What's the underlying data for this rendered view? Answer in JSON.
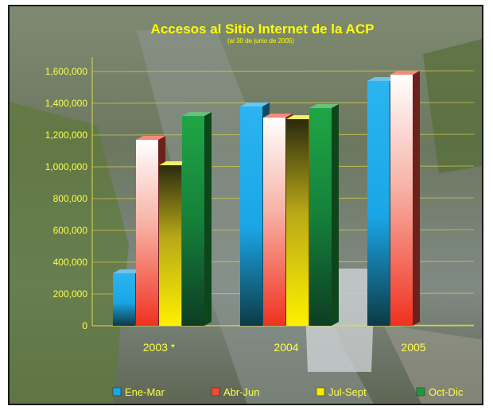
{
  "chart_data": {
    "type": "bar",
    "title": "Accesos al Sitio Internet de la ACP",
    "subtitle": "(al 30 de junio de 2005)",
    "categories": [
      "2003 *",
      "2004",
      "2005"
    ],
    "series": [
      {
        "name": "Ene-Mar",
        "values": [
          330000,
          1380000,
          1540000
        ]
      },
      {
        "name": "Abr-Jun",
        "values": [
          1170000,
          1310000,
          1580000
        ]
      },
      {
        "name": "Jul-Sept",
        "values": [
          1010000,
          1300000,
          null
        ]
      },
      {
        "name": "Oct-Dic",
        "values": [
          1320000,
          1370000,
          null
        ]
      }
    ],
    "yticks": [
      "0",
      "200,000",
      "400,000",
      "600,000",
      "800,000",
      "1,000,000",
      "1,200,000",
      "1,400,000",
      "1,600,000"
    ],
    "ylim": [
      0,
      1650000
    ],
    "grid": true,
    "legend_position": "bottom",
    "colors": {
      "title": "#ffff00",
      "tick_labels": "#ffff44",
      "gridlines": "#e0d84a",
      "series": [
        "#1aa6e6",
        "#f04a3a",
        "#ffe800",
        "#1f9a3a"
      ]
    }
  }
}
